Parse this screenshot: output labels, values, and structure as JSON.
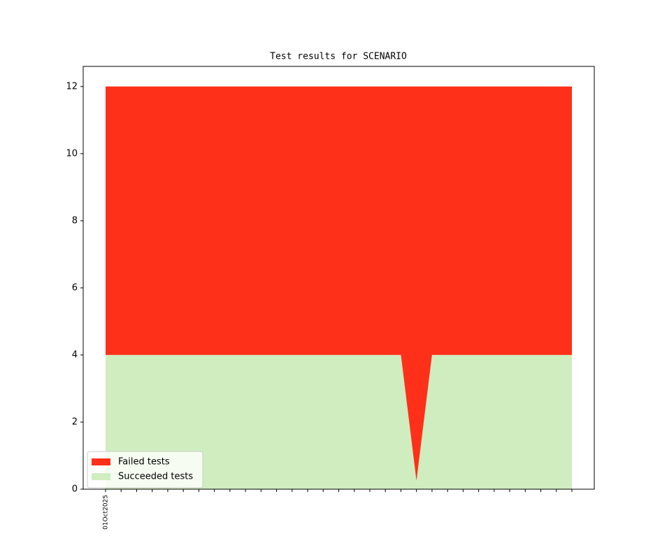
{
  "chart_data": {
    "type": "stacked_area",
    "title": "Test results for SCENARIO",
    "categories": [
      "01Oct2025",
      null,
      null,
      null,
      null,
      null,
      null,
      null,
      null,
      null,
      null,
      null,
      null,
      null,
      null,
      null,
      null,
      null,
      null,
      null,
      null,
      null,
      null,
      null,
      null,
      null,
      null,
      null,
      null,
      null,
      null
    ],
    "series": [
      {
        "name": "Failed tests",
        "color": "#fe3019",
        "values": [
          8,
          8,
          8,
          8,
          8,
          8,
          8,
          8,
          8,
          8,
          8,
          8,
          8,
          8,
          8,
          8,
          8,
          8,
          8,
          8,
          11.75,
          8,
          8,
          8,
          8,
          8,
          8,
          8,
          8,
          8,
          8
        ]
      },
      {
        "name": "Succeeded tests",
        "color": "#cfedbf",
        "values": [
          4,
          4,
          4,
          4,
          4,
          4,
          4,
          4,
          4,
          4,
          4,
          4,
          4,
          4,
          4,
          4,
          4,
          4,
          4,
          4,
          0.25,
          4,
          4,
          4,
          4,
          4,
          4,
          4,
          4,
          4,
          4
        ]
      }
    ],
    "ylim": [
      0,
      12.6
    ],
    "yticks": [
      0,
      2,
      4,
      6,
      8,
      10,
      12
    ],
    "grid": false,
    "legend": "lower left"
  }
}
